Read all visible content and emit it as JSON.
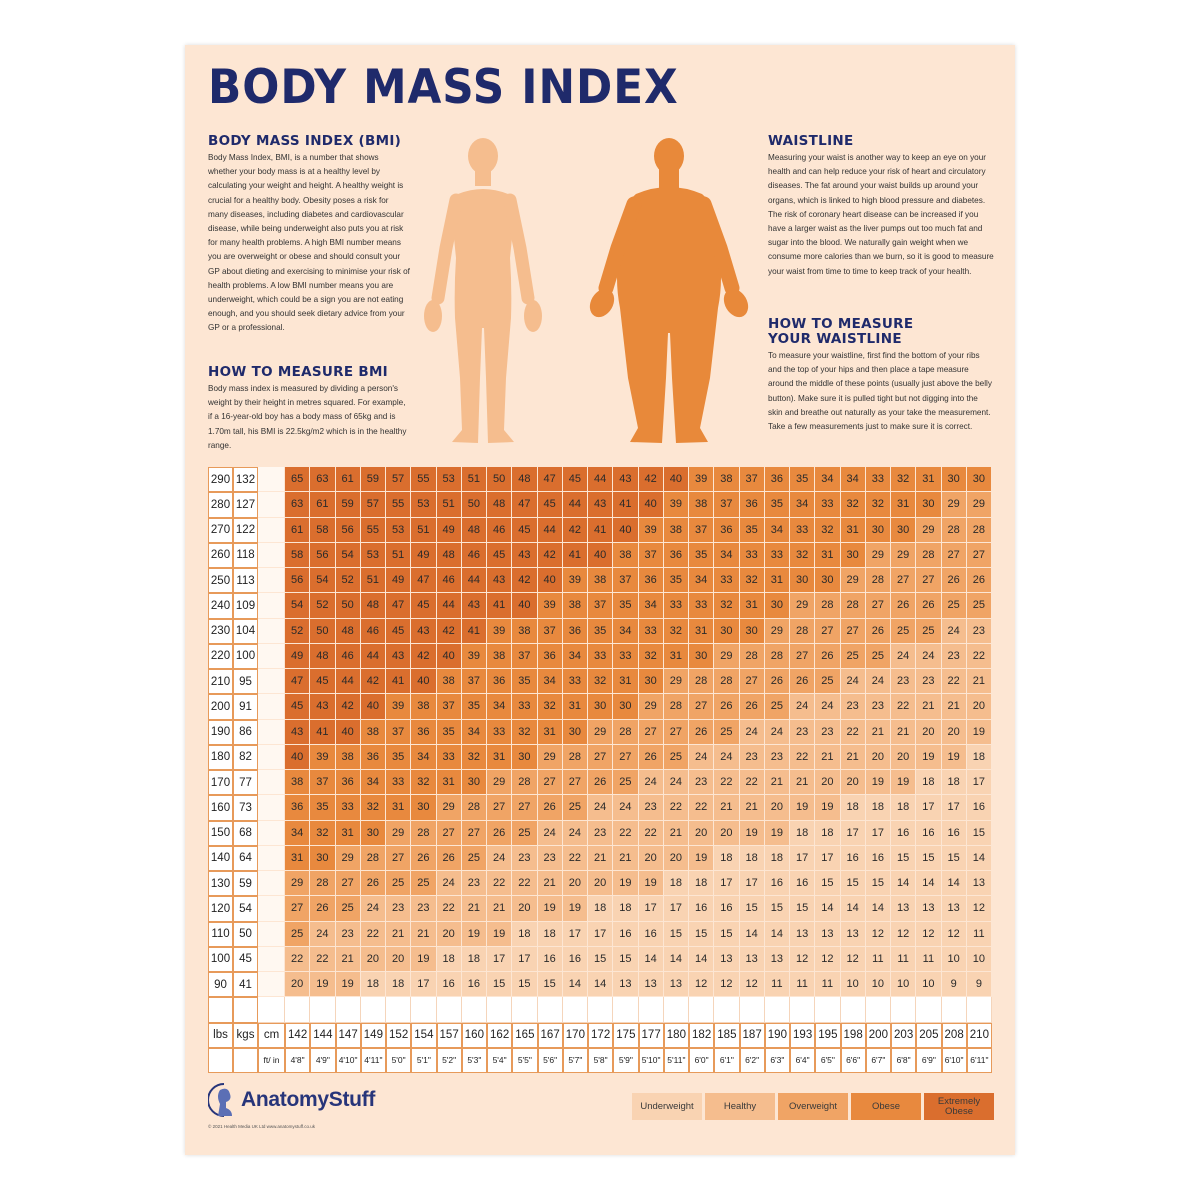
{
  "title": "BODY MASS INDEX",
  "left": {
    "bmi_heading": "BODY MASS INDEX (BMI)",
    "bmi_text": "Body Mass Index, BMI, is a number that shows whether your body mass is at a healthy level by calculating your weight and height. A healthy weight is crucial for a healthy body. Obesity poses a risk for many diseases, including diabetes and cardiovascular disease, while being underweight also puts you at risk for many health problems. A high BMI number means you are overweight or obese and should consult your GP about dieting and exercising to minimise your risk of health problems. A low BMI number means you are underweight, which could be a sign you are not eating enough, and you should seek dietary advice from your GP or a professional.",
    "measure_heading": "HOW TO MEASURE BMI",
    "measure_text": "Body mass index is measured by dividing a person's weight by their height in metres squared. For example, if a 16-year-old boy has a body mass of 65kg and is 1.70m tall, his BMI is 22.5kg/m2 which is in the healthy range."
  },
  "right": {
    "waist_heading": "WAISTLINE",
    "waist_text": "Measuring your waist is another way to keep an eye on your health and can help reduce your risk of heart and circulatory diseases. The fat around your waist builds up around your organs, which is linked to high blood pressure and diabetes. The risk of coronary heart disease can be increased if you have a larger waist as the liver pumps out too much fat and sugar into the blood. We naturally gain weight when we consume more calories than we burn, so it is good to measure your waist from time to time to keep track of your health.",
    "measure_heading": "HOW TO MEASURE YOUR WAISTLINE",
    "measure_text": "To measure your waistline, first find the bottom of your ribs and the top of your hips and then place a tape measure around the middle of these points (usually just above the belly button). Make sure it is pulled tight but not digging into the skin and breathe out naturally as your take the measurement. Take a few measurements just to make sure it is correct."
  },
  "figures": {
    "healthy_color": "#f5bd8e",
    "obese_color": "#e8893a"
  },
  "table": {
    "labels": {
      "lbs": "lbs",
      "kgs": "kgs",
      "cm": "cm",
      "ftin": "ft/ in"
    },
    "heights_cm": [
      "142",
      "144",
      "147",
      "149",
      "152",
      "154",
      "157",
      "160",
      "162",
      "165",
      "167",
      "170",
      "172",
      "175",
      "177",
      "180",
      "182",
      "185",
      "187",
      "190",
      "193",
      "195",
      "198",
      "200",
      "203",
      "205",
      "208",
      "210"
    ],
    "heights_ftin": [
      "4'8\"",
      "4'9\"",
      "4'10\"",
      "4'11\"",
      "5'0\"",
      "5'1\"",
      "5'2\"",
      "5'3\"",
      "5'4\"",
      "5'5\"",
      "5'6\"",
      "5'7\"",
      "5'8\"",
      "5'9\"",
      "5'10\"",
      "5'11\"",
      "6'0\"",
      "6'1\"",
      "6'2\"",
      "6'3\"",
      "6'4\"",
      "6'5\"",
      "6'6\"",
      "6'7\"",
      "6'8\"",
      "6'9\"",
      "6'10\"",
      "6'11\""
    ],
    "rows": [
      {
        "lbs": "290",
        "kgs": "132",
        "bmi": [
          65,
          63,
          61,
          59,
          57,
          55,
          53,
          51,
          50,
          48,
          47,
          45,
          44,
          43,
          42,
          40,
          39,
          38,
          37,
          36,
          35,
          34,
          34,
          33,
          32,
          31,
          30,
          30
        ]
      },
      {
        "lbs": "280",
        "kgs": "127",
        "bmi": [
          63,
          61,
          59,
          57,
          55,
          53,
          51,
          50,
          48,
          47,
          45,
          44,
          43,
          41,
          40,
          39,
          38,
          37,
          36,
          35,
          34,
          33,
          32,
          32,
          31,
          30,
          29,
          29
        ]
      },
      {
        "lbs": "270",
        "kgs": "122",
        "bmi": [
          61,
          58,
          56,
          55,
          53,
          51,
          49,
          48,
          46,
          45,
          44,
          42,
          41,
          40,
          39,
          38,
          37,
          36,
          35,
          34,
          33,
          32,
          31,
          30,
          30,
          29,
          28,
          28
        ]
      },
      {
        "lbs": "260",
        "kgs": "118",
        "bmi": [
          58,
          56,
          54,
          53,
          51,
          49,
          48,
          46,
          45,
          43,
          42,
          41,
          40,
          38,
          37,
          36,
          35,
          34,
          33,
          33,
          32,
          31,
          30,
          29,
          29,
          28,
          27,
          27
        ]
      },
      {
        "lbs": "250",
        "kgs": "113",
        "bmi": [
          56,
          54,
          52,
          51,
          49,
          47,
          46,
          44,
          43,
          42,
          40,
          39,
          38,
          37,
          36,
          35,
          34,
          33,
          32,
          31,
          30,
          30,
          29,
          28,
          27,
          27,
          26,
          26
        ]
      },
      {
        "lbs": "240",
        "kgs": "109",
        "bmi": [
          54,
          52,
          50,
          48,
          47,
          45,
          44,
          43,
          41,
          40,
          39,
          38,
          37,
          35,
          34,
          33,
          33,
          32,
          31,
          30,
          29,
          28,
          28,
          27,
          26,
          26,
          25,
          25
        ]
      },
      {
        "lbs": "230",
        "kgs": "104",
        "bmi": [
          52,
          50,
          48,
          46,
          45,
          43,
          42,
          41,
          39,
          38,
          37,
          36,
          35,
          34,
          33,
          32,
          31,
          30,
          30,
          29,
          28,
          27,
          27,
          26,
          25,
          25,
          24,
          23
        ]
      },
      {
        "lbs": "220",
        "kgs": "100",
        "bmi": [
          49,
          48,
          46,
          44,
          43,
          42,
          40,
          39,
          38,
          37,
          36,
          34,
          33,
          33,
          32,
          31,
          30,
          29,
          28,
          28,
          27,
          26,
          25,
          25,
          24,
          24,
          23,
          22
        ]
      },
      {
        "lbs": "210",
        "kgs": "95",
        "bmi": [
          47,
          45,
          44,
          42,
          41,
          40,
          38,
          37,
          36,
          35,
          34,
          33,
          32,
          31,
          30,
          29,
          28,
          28,
          27,
          26,
          26,
          25,
          24,
          24,
          23,
          23,
          22,
          21
        ]
      },
      {
        "lbs": "200",
        "kgs": "91",
        "bmi": [
          45,
          43,
          42,
          40,
          39,
          38,
          37,
          35,
          34,
          33,
          32,
          31,
          30,
          30,
          29,
          28,
          27,
          26,
          26,
          25,
          24,
          24,
          23,
          23,
          22,
          21,
          21,
          20
        ]
      },
      {
        "lbs": "190",
        "kgs": "86",
        "bmi": [
          43,
          41,
          40,
          38,
          37,
          36,
          35,
          34,
          33,
          32,
          31,
          30,
          29,
          28,
          27,
          27,
          26,
          25,
          24,
          24,
          23,
          23,
          22,
          21,
          21,
          20,
          20,
          19
        ]
      },
      {
        "lbs": "180",
        "kgs": "82",
        "bmi": [
          40,
          39,
          38,
          36,
          35,
          34,
          33,
          32,
          31,
          30,
          29,
          28,
          27,
          27,
          26,
          25,
          24,
          24,
          23,
          23,
          22,
          21,
          21,
          20,
          20,
          19,
          19,
          18
        ]
      },
      {
        "lbs": "170",
        "kgs": "77",
        "bmi": [
          38,
          37,
          36,
          34,
          33,
          32,
          31,
          30,
          29,
          28,
          27,
          27,
          26,
          25,
          24,
          24,
          23,
          22,
          22,
          21,
          21,
          20,
          20,
          19,
          19,
          18,
          18,
          17
        ]
      },
      {
        "lbs": "160",
        "kgs": "73",
        "bmi": [
          36,
          35,
          33,
          32,
          31,
          30,
          29,
          28,
          27,
          27,
          26,
          25,
          24,
          24,
          23,
          22,
          22,
          21,
          21,
          20,
          19,
          19,
          18,
          18,
          18,
          17,
          17,
          16
        ]
      },
      {
        "lbs": "150",
        "kgs": "68",
        "bmi": [
          34,
          32,
          31,
          30,
          29,
          28,
          27,
          27,
          26,
          25,
          24,
          24,
          23,
          22,
          22,
          21,
          20,
          20,
          19,
          19,
          18,
          18,
          17,
          17,
          16,
          16,
          16,
          15
        ]
      },
      {
        "lbs": "140",
        "kgs": "64",
        "bmi": [
          31,
          30,
          29,
          28,
          27,
          26,
          26,
          25,
          24,
          23,
          23,
          22,
          21,
          21,
          20,
          20,
          19,
          18,
          18,
          18,
          17,
          17,
          16,
          16,
          15,
          15,
          15,
          14
        ]
      },
      {
        "lbs": "130",
        "kgs": "59",
        "bmi": [
          29,
          28,
          27,
          26,
          25,
          25,
          24,
          23,
          22,
          22,
          21,
          20,
          20,
          19,
          19,
          18,
          18,
          17,
          17,
          16,
          16,
          15,
          15,
          15,
          14,
          14,
          14,
          13
        ]
      },
      {
        "lbs": "120",
        "kgs": "54",
        "bmi": [
          27,
          26,
          25,
          24,
          23,
          23,
          22,
          21,
          21,
          20,
          19,
          19,
          18,
          18,
          17,
          17,
          16,
          16,
          15,
          15,
          15,
          14,
          14,
          14,
          13,
          13,
          13,
          12
        ]
      },
      {
        "lbs": "110",
        "kgs": "50",
        "bmi": [
          25,
          24,
          23,
          22,
          21,
          21,
          20,
          19,
          19,
          18,
          18,
          17,
          17,
          16,
          16,
          15,
          15,
          15,
          14,
          14,
          13,
          13,
          13,
          12,
          12,
          12,
          12,
          11
        ]
      },
      {
        "lbs": "100",
        "kgs": "45",
        "bmi": [
          22,
          22,
          21,
          20,
          20,
          19,
          18,
          18,
          17,
          17,
          16,
          16,
          15,
          15,
          14,
          14,
          14,
          13,
          13,
          13,
          12,
          12,
          12,
          11,
          11,
          11,
          10,
          10
        ]
      },
      {
        "lbs": "90",
        "kgs": "41",
        "bmi": [
          20,
          19,
          19,
          18,
          18,
          17,
          16,
          16,
          15,
          15,
          15,
          14,
          14,
          13,
          13,
          13,
          12,
          12,
          12,
          11,
          11,
          11,
          10,
          10,
          10,
          10,
          9,
          9
        ]
      }
    ]
  },
  "legend": [
    {
      "label": "Underweight",
      "color": "#f9d3b2"
    },
    {
      "label": "Healthy",
      "color": "#f5bd8e"
    },
    {
      "label": "Overweight",
      "color": "#f0a465"
    },
    {
      "label": "Obese",
      "color": "#e8893e"
    },
    {
      "label": "Extremely Obese",
      "color": "#da6e2e"
    }
  ],
  "brand": {
    "logo_text": "AnatomyStuff",
    "copyright": "© 2021 Health Media UK Ltd www.anatomystuff.co.uk"
  }
}
